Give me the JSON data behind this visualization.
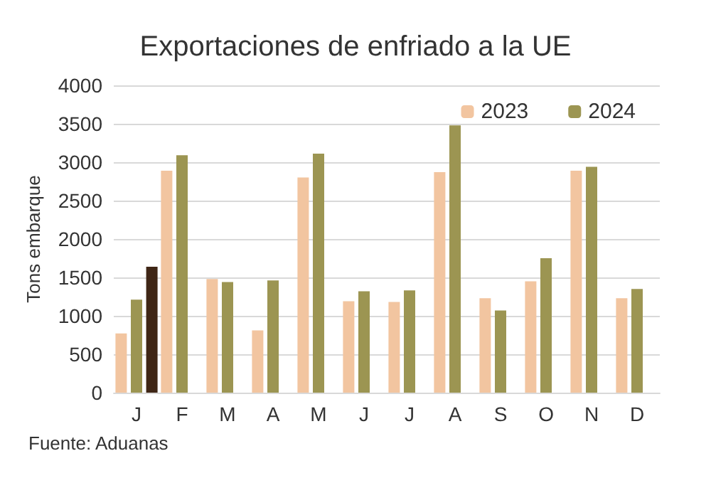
{
  "chart_data": {
    "type": "bar",
    "title": "Exportaciones de enfriado a la UE",
    "ylabel": "Tons embarque",
    "annotations": [
      "Fuente: Aduanas"
    ],
    "categories": [
      "J",
      "F",
      "M",
      "A",
      "M",
      "J",
      "J",
      "A",
      "S",
      "O",
      "N",
      "D"
    ],
    "series": [
      {
        "name": "2023",
        "color": "#f2c5a0",
        "values": [
          770,
          2890,
          1480,
          810,
          2800,
          1190,
          1180,
          2870,
          1230,
          1450,
          2890,
          1230
        ]
      },
      {
        "name": "2024",
        "color": "#9c9552",
        "values": [
          1210,
          3090,
          1440,
          1460,
          3110,
          1320,
          1330,
          3480,
          1070,
          1750,
          2940,
          1350
        ]
      },
      {
        "color": "#3f2616",
        "values": [
          1640,
          null,
          null,
          null,
          null,
          null,
          null,
          null,
          null,
          null,
          null,
          null
        ]
      }
    ],
    "ylim": [
      0,
      4000
    ],
    "yticks": [
      0,
      500,
      1000,
      1500,
      2000,
      2500,
      3000,
      3500,
      4000
    ],
    "grid": "y",
    "legend": "top right"
  }
}
